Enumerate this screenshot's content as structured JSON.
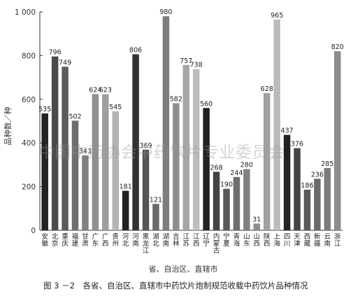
{
  "chart_data": {
    "type": "bar",
    "ylabel": "品种数／种",
    "xlabel": "省、自治区、直辖市",
    "ylim": [
      0,
      1000
    ],
    "yticks": [
      0,
      200,
      400,
      600,
      800,
      1000
    ],
    "ytick_labels": [
      "0",
      "200",
      "400",
      "600",
      "800",
      "1 000"
    ],
    "categories": [
      "安徽",
      "北京",
      "重庆",
      "福建",
      "甘肃",
      "广东",
      "广西",
      "贵州",
      "河北",
      "河南",
      "黑龙江",
      "湖北",
      "湖南",
      "吉林",
      "江苏",
      "江西",
      "辽宁",
      "内蒙古",
      "宁夏",
      "青海",
      "山东",
      "山西",
      "陕西",
      "上海",
      "四川",
      "天津",
      "西藏",
      "新疆",
      "云南",
      "浙江"
    ],
    "values": [
      535,
      796,
      749,
      502,
      343,
      624,
      623,
      545,
      181,
      806,
      369,
      121,
      980,
      582,
      757,
      738,
      560,
      268,
      190,
      244,
      280,
      31,
      628,
      965,
      437,
      376,
      186,
      236,
      285,
      820
    ],
    "bar_colors": [
      "#222222",
      "#4a4a4a",
      "#5c5c5c",
      "#6e6e6e",
      "#808080",
      "#909090",
      "#9e9e9e",
      "#b4b4b4",
      "#222222",
      "#333333",
      "#555555",
      "#6a6a6a",
      "#7e7e7e",
      "#8e8e8e",
      "#a6a6a6",
      "#bdbdbd",
      "#222222",
      "#444444",
      "#5a5a5a",
      "#6e6e6e",
      "#808080",
      "#8e8e8e",
      "#a0a0a0",
      "#bbbbbb",
      "#222222",
      "#444444",
      "#5a5a5a",
      "#6a6a6a",
      "#7c7c7c",
      "#8c8c8c"
    ],
    "axis_color": "#333333"
  },
  "caption": "图 3 －2　各省、自治区、直辖市中药饮片炮制规范收载中药饮片品种情况",
  "watermark": "中国中药协会中药饮片专业委员会"
}
